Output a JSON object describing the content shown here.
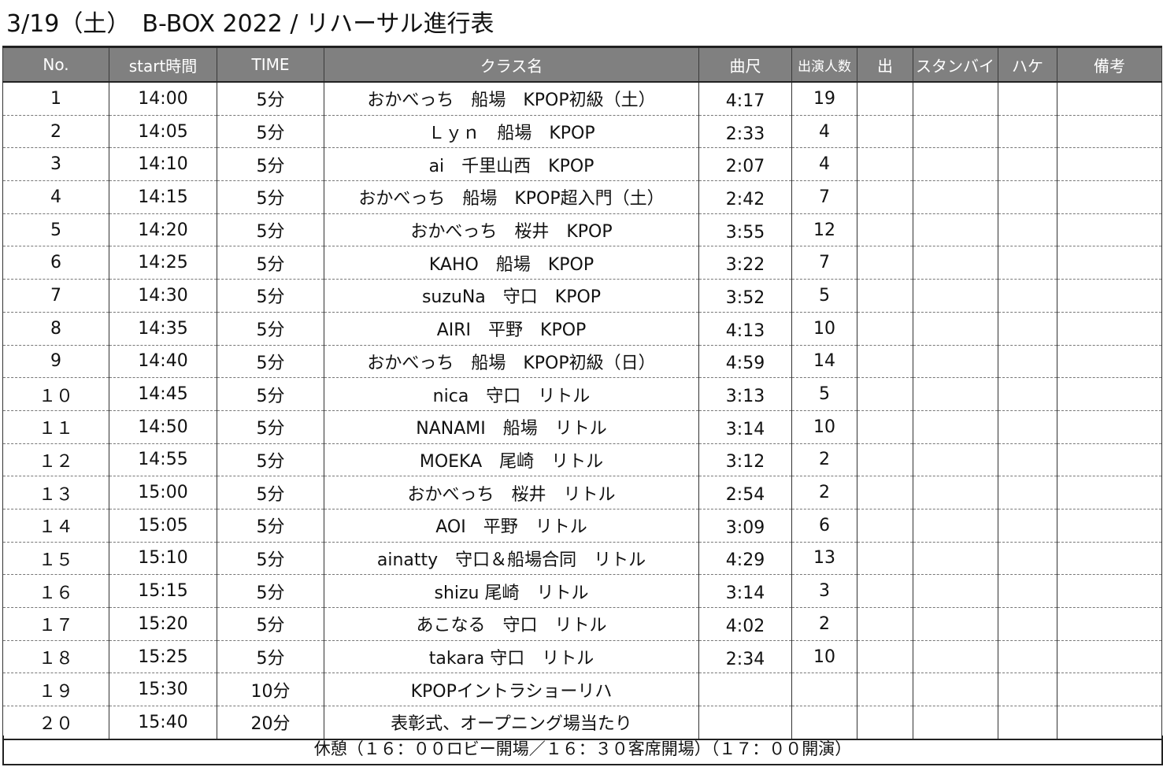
{
  "title": "3/19（土）　B-BOX 2022 / リハーサル進行表",
  "table": {
    "headers": [
      "No.",
      "start時間",
      "TIME",
      "クラス名",
      "曲尺",
      "出演人数",
      "出",
      "スタンバイ",
      "ハケ",
      "備考"
    ],
    "rows": [
      {
        "no": "1",
        "start": "14:00",
        "time": "5分",
        "class_name": "おかべっち　船場　KPOP初級（土）",
        "length": "4:17",
        "members": "19"
      },
      {
        "no": "2",
        "start": "14:05",
        "time": "5分",
        "class_name": "Ｌｙｎ　船場　KPOP",
        "length": "2:33",
        "members": "4"
      },
      {
        "no": "3",
        "start": "14:10",
        "time": "5分",
        "class_name": "ai　千里山西　KPOP",
        "length": "2:07",
        "members": "4"
      },
      {
        "no": "4",
        "start": "14:15",
        "time": "5分",
        "class_name": "おかべっち　船場　KPOP超入門（土）",
        "length": "2:42",
        "members": "7"
      },
      {
        "no": "5",
        "start": "14:20",
        "time": "5分",
        "class_name": "おかべっち　桜井　KPOP",
        "length": "3:55",
        "members": "12"
      },
      {
        "no": "6",
        "start": "14:25",
        "time": "5分",
        "class_name": "KAHO　船場　KPOP",
        "length": "3:22",
        "members": "7"
      },
      {
        "no": "7",
        "start": "14:30",
        "time": "5分",
        "class_name": "suzuNa　守口　KPOP",
        "length": "3:52",
        "members": "5"
      },
      {
        "no": "8",
        "start": "14:35",
        "time": "5分",
        "class_name": "AIRI　平野　KPOP",
        "length": "4:13",
        "members": "10"
      },
      {
        "no": "9",
        "start": "14:40",
        "time": "5分",
        "class_name": "おかべっち　船場　KPOP初級（日）",
        "length": "4:59",
        "members": "14"
      },
      {
        "no": "１０",
        "start": "14:45",
        "time": "5分",
        "class_name": "nica　守口　リトル",
        "length": "3:13",
        "members": "5"
      },
      {
        "no": "１１",
        "start": "14:50",
        "time": "5分",
        "class_name": "NANAMI　船場　リトル",
        "length": "3:14",
        "members": "10"
      },
      {
        "no": "１２",
        "start": "14:55",
        "time": "5分",
        "class_name": "MOEKA　尾崎　リトル",
        "length": "3:12",
        "members": "2"
      },
      {
        "no": "１３",
        "start": "15:00",
        "time": "5分",
        "class_name": "おかべっち　桜井　リトル",
        "length": "2:54",
        "members": "2"
      },
      {
        "no": "１４",
        "start": "15:05",
        "time": "5分",
        "class_name": "AOI　平野　リトル",
        "length": "3:09",
        "members": "6"
      },
      {
        "no": "１５",
        "start": "15:10",
        "time": "5分",
        "class_name": "ainatty　守口＆船場合同　リトル",
        "length": "4:29",
        "members": "13"
      },
      {
        "no": "１６",
        "start": "15:15",
        "time": "5分",
        "class_name": "shizu 尾崎　リトル",
        "length": "3:14",
        "members": "3"
      },
      {
        "no": "１７",
        "start": "15:20",
        "time": "5分",
        "class_name": "あこなる　守口　リトル",
        "length": "4:02",
        "members": "2"
      },
      {
        "no": "１８",
        "start": "15:25",
        "time": "5分",
        "class_name": "takara 守口　リトル",
        "length": "2:34",
        "members": "10"
      },
      {
        "no": "１９",
        "start": "15:30",
        "time": "10分",
        "class_name": "KPOPイントラショーリハ",
        "length": "",
        "members": ""
      },
      {
        "no": "２０",
        "start": "15:40",
        "time": "20分",
        "class_name": "表彰式、オープニング場当たり",
        "length": "",
        "members": ""
      }
    ]
  },
  "footer": "休憩（１６：００ロビー開場／１６：３０客席開場）（１７：００開演）",
  "colors": {
    "header_background": "#808080",
    "header_text": "#ffffff",
    "grid_line": "#333333"
  }
}
